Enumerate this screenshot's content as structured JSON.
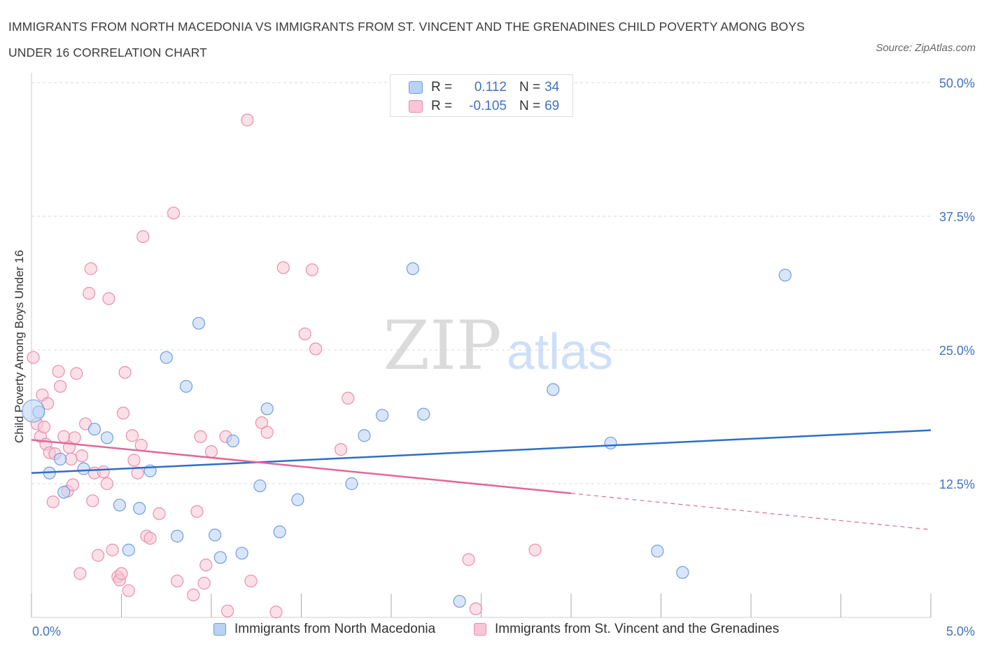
{
  "header": {
    "title": "IMMIGRANTS FROM NORTH MACEDONIA VS IMMIGRANTS FROM ST. VINCENT AND THE GRENADINES CHILD POVERTY AMONG BOYS UNDER 16 CORRELATION CHART",
    "source": "Source: ZipAtlas.com"
  },
  "watermark": {
    "zip": "ZIP",
    "atlas": "atlas"
  },
  "stats_legend": {
    "r_label": "R =",
    "n_label": "N =",
    "blue": {
      "r": "0.112",
      "n": "34"
    },
    "pink": {
      "r": "-0.105",
      "n": "69"
    }
  },
  "colors": {
    "blue_fill": "#b9d2f5",
    "blue_stroke": "#6f9ee0",
    "blue_line": "#2f6ec8",
    "pink_fill": "#f8c6d6",
    "pink_stroke": "#e98fab",
    "pink_line": "#e0689a",
    "tick_text": "#3f72c2",
    "grid": "#d9d9d9"
  },
  "chart_data": {
    "type": "scatter",
    "title": "IMMIGRANTS FROM NORTH MACEDONIA VS IMMIGRANTS FROM ST. VINCENT AND THE GRENADINES CHILD POVERTY AMONG BOYS UNDER 16 CORRELATION CHART",
    "xlabel": "",
    "ylabel": "Child Poverty Among Boys Under 16",
    "xlim": [
      0,
      5
    ],
    "ylim": [
      0,
      50
    ],
    "x_tick_labels": [
      "0.0%",
      "5.0%"
    ],
    "y_ticks": [
      12.5,
      25,
      37.5,
      50
    ],
    "y_tick_labels": [
      "12.5%",
      "25.0%",
      "37.5%",
      "50.0%"
    ],
    "grid": true,
    "legend_placement": "bottom",
    "series": [
      {
        "name": "Immigrants from North Macedonia",
        "color": "#6f9ee0",
        "r": 0.112,
        "n": 34,
        "trend": {
          "x": [
            0,
            5
          ],
          "y": [
            13.5,
            17.5
          ]
        },
        "points": [
          [
            0.04,
            19.2
          ],
          [
            0.1,
            13.5
          ],
          [
            0.16,
            14.8
          ],
          [
            0.18,
            11.7
          ],
          [
            0.29,
            13.9
          ],
          [
            0.35,
            17.6
          ],
          [
            0.42,
            16.8
          ],
          [
            0.49,
            10.5
          ],
          [
            0.54,
            6.3
          ],
          [
            0.6,
            10.2
          ],
          [
            0.66,
            13.7
          ],
          [
            0.75,
            24.3
          ],
          [
            0.81,
            7.6
          ],
          [
            0.86,
            21.6
          ],
          [
            0.93,
            27.5
          ],
          [
            1.02,
            7.7
          ],
          [
            1.05,
            5.6
          ],
          [
            1.12,
            16.5
          ],
          [
            1.17,
            6.0
          ],
          [
            1.27,
            12.3
          ],
          [
            1.31,
            19.5
          ],
          [
            1.38,
            8.0
          ],
          [
            1.48,
            11.0
          ],
          [
            1.78,
            12.5
          ],
          [
            1.85,
            17.0
          ],
          [
            1.95,
            18.9
          ],
          [
            2.12,
            32.6
          ],
          [
            2.18,
            19.0
          ],
          [
            2.38,
            1.5
          ],
          [
            2.9,
            21.3
          ],
          [
            3.22,
            16.3
          ],
          [
            3.48,
            6.2
          ],
          [
            3.62,
            4.2
          ],
          [
            4.19,
            32.0
          ]
        ]
      },
      {
        "name": "Immigrants from St. Vincent and the Grenadines",
        "color": "#e98fab",
        "r": -0.105,
        "n": 69,
        "trend": {
          "x": [
            0,
            3.0
          ],
          "y": [
            16.6,
            11.6
          ]
        },
        "trend_dashed": {
          "x": [
            3.0,
            5
          ],
          "y": [
            11.6,
            8.2
          ]
        },
        "points": [
          [
            0.01,
            24.3
          ],
          [
            0.03,
            18.1
          ],
          [
            0.05,
            16.9
          ],
          [
            0.06,
            20.8
          ],
          [
            0.07,
            17.8
          ],
          [
            0.08,
            16.2
          ],
          [
            0.09,
            20.0
          ],
          [
            0.1,
            15.4
          ],
          [
            0.12,
            10.8
          ],
          [
            0.13,
            15.3
          ],
          [
            0.15,
            23.0
          ],
          [
            0.16,
            21.6
          ],
          [
            0.18,
            16.9
          ],
          [
            0.2,
            11.8
          ],
          [
            0.21,
            15.9
          ],
          [
            0.22,
            14.8
          ],
          [
            0.23,
            12.4
          ],
          [
            0.24,
            16.8
          ],
          [
            0.25,
            22.8
          ],
          [
            0.27,
            4.1
          ],
          [
            0.28,
            15.1
          ],
          [
            0.3,
            18.1
          ],
          [
            0.32,
            30.3
          ],
          [
            0.33,
            32.6
          ],
          [
            0.34,
            10.9
          ],
          [
            0.35,
            13.5
          ],
          [
            0.37,
            5.8
          ],
          [
            0.4,
            13.6
          ],
          [
            0.42,
            12.5
          ],
          [
            0.43,
            29.8
          ],
          [
            0.45,
            6.3
          ],
          [
            0.48,
            3.8
          ],
          [
            0.49,
            3.5
          ],
          [
            0.5,
            4.1
          ],
          [
            0.51,
            19.1
          ],
          [
            0.52,
            22.9
          ],
          [
            0.54,
            2.5
          ],
          [
            0.56,
            17.0
          ],
          [
            0.57,
            14.7
          ],
          [
            0.59,
            13.5
          ],
          [
            0.61,
            16.1
          ],
          [
            0.62,
            35.6
          ],
          [
            0.64,
            7.6
          ],
          [
            0.66,
            7.4
          ],
          [
            0.71,
            9.7
          ],
          [
            0.79,
            37.8
          ],
          [
            0.81,
            3.4
          ],
          [
            0.9,
            2.1
          ],
          [
            0.92,
            9.9
          ],
          [
            0.94,
            16.9
          ],
          [
            0.96,
            3.2
          ],
          [
            0.97,
            4.9
          ],
          [
            1.0,
            15.5
          ],
          [
            1.08,
            16.9
          ],
          [
            1.09,
            0.6
          ],
          [
            1.2,
            46.5
          ],
          [
            1.22,
            3.4
          ],
          [
            1.28,
            18.2
          ],
          [
            1.31,
            17.3
          ],
          [
            1.36,
            0.5
          ],
          [
            1.4,
            32.7
          ],
          [
            1.52,
            26.5
          ],
          [
            1.56,
            32.5
          ],
          [
            1.58,
            25.1
          ],
          [
            1.72,
            15.7
          ],
          [
            1.76,
            20.5
          ],
          [
            2.43,
            5.4
          ],
          [
            2.47,
            0.8
          ],
          [
            2.8,
            6.3
          ]
        ]
      }
    ]
  }
}
